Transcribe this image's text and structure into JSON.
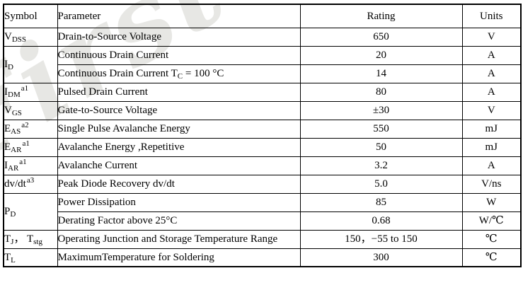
{
  "watermark": "First Sem",
  "table": {
    "headers": [
      "Symbol",
      "Parameter",
      "Rating",
      "Units"
    ],
    "groups": [
      {
        "symbol": [
          [
            "V",
            "n"
          ],
          [
            "DSS",
            "sub"
          ]
        ],
        "rows": [
          {
            "parameter": [
              [
                "Drain-to-Source Voltage",
                "n"
              ]
            ],
            "rating": "650",
            "units": "V"
          }
        ]
      },
      {
        "symbol": [
          [
            "I",
            "n"
          ],
          [
            "D",
            "sub"
          ]
        ],
        "rows": [
          {
            "parameter": [
              [
                "Continuous Drain Current",
                "n"
              ]
            ],
            "rating": "20",
            "units": "A"
          },
          {
            "parameter": [
              [
                "Continuous Drain Current T",
                "n"
              ],
              [
                "C",
                "sub"
              ],
              [
                " = 100 °C",
                "n"
              ]
            ],
            "rating": "14",
            "units": "A"
          }
        ]
      },
      {
        "symbol": [
          [
            "I",
            "n"
          ],
          [
            "DM",
            "sub"
          ],
          [
            "a1",
            "sup"
          ]
        ],
        "rows": [
          {
            "parameter": [
              [
                "Pulsed Drain Current",
                "n"
              ]
            ],
            "rating": "80",
            "units": "A"
          }
        ]
      },
      {
        "symbol": [
          [
            "V",
            "n"
          ],
          [
            "GS",
            "sub"
          ]
        ],
        "rows": [
          {
            "parameter": [
              [
                "Gate-to-Source Voltage",
                "n"
              ]
            ],
            "rating": "±30",
            "units": "V"
          }
        ]
      },
      {
        "symbol": [
          [
            "E",
            "n"
          ],
          [
            "AS",
            "sub"
          ],
          [
            "a2",
            "sup"
          ]
        ],
        "rows": [
          {
            "parameter": [
              [
                "Single Pulse Avalanche Energy",
                "n"
              ]
            ],
            "rating": "550",
            "units": "mJ"
          }
        ]
      },
      {
        "symbol": [
          [
            "E",
            "n"
          ],
          [
            "AR",
            "sub"
          ],
          [
            "a1",
            "sup"
          ]
        ],
        "rows": [
          {
            "parameter": [
              [
                "Avalanche Energy ,Repetitive",
                "n"
              ]
            ],
            "rating": "50",
            "units": "mJ"
          }
        ]
      },
      {
        "symbol": [
          [
            "I",
            "n"
          ],
          [
            "AR",
            "sub"
          ],
          [
            "a1",
            "sup"
          ]
        ],
        "rows": [
          {
            "parameter": [
              [
                "Avalanche Current",
                "n"
              ]
            ],
            "rating": "3.2",
            "units": "A"
          }
        ]
      },
      {
        "symbol": [
          [
            "dv/dt",
            "n"
          ],
          [
            "a3",
            "sup"
          ]
        ],
        "rows": [
          {
            "parameter": [
              [
                "Peak Diode Recovery dv/dt",
                "n"
              ]
            ],
            "rating": "5.0",
            "units": "V/ns"
          }
        ]
      },
      {
        "symbol": [
          [
            "P",
            "n"
          ],
          [
            "D",
            "sub"
          ]
        ],
        "rows": [
          {
            "parameter": [
              [
                "Power Dissipation",
                "n"
              ]
            ],
            "rating": "85",
            "units": "W"
          },
          {
            "parameter": [
              [
                "Derating Factor above 25°C",
                "n"
              ]
            ],
            "rating": "0.68",
            "units": "W/℃"
          }
        ]
      },
      {
        "symbol": [
          [
            "T",
            "n"
          ],
          [
            "J",
            "sub"
          ],
          [
            "， ",
            "n"
          ],
          [
            "T",
            "n"
          ],
          [
            "stg",
            "sub"
          ]
        ],
        "rows": [
          {
            "parameter": [
              [
                "Operating Junction and Storage Temperature Range",
                "n"
              ]
            ],
            "rating": "150，−55 to 150",
            "units": "℃"
          }
        ]
      },
      {
        "symbol": [
          [
            "T",
            "n"
          ],
          [
            "L",
            "sub"
          ]
        ],
        "rows": [
          {
            "parameter": [
              [
                "MaximumTemperature for Soldering",
                "n"
              ]
            ],
            "rating": "300",
            "units": "℃"
          }
        ]
      }
    ]
  }
}
